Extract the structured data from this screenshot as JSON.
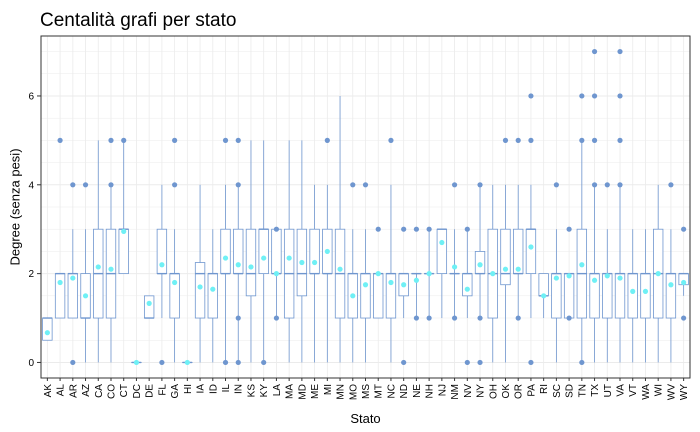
{
  "chart_data": {
    "type": "boxplot",
    "title": "Centalità grafi per stato",
    "xlabel": "Stato",
    "ylabel": "Degree (senza pesi)",
    "ylim": [
      -0.35,
      7.35
    ],
    "y_ticks": [
      0,
      2,
      4,
      6
    ],
    "grid": true,
    "colors": {
      "box": "#6f96cf",
      "outlier": "#6f96cf",
      "mean": "#6ff0f5",
      "grid": "#ebebeb",
      "border": "#333333"
    },
    "categories": [
      "AK",
      "AL",
      "AR",
      "AZ",
      "CA",
      "CO",
      "CT",
      "DC",
      "DE",
      "FL",
      "GA",
      "HI",
      "IA",
      "ID",
      "IL",
      "IN",
      "KS",
      "KY",
      "LA",
      "MA",
      "MD",
      "ME",
      "MI",
      "MN",
      "MO",
      "MS",
      "MT",
      "NC",
      "ND",
      "NE",
      "NH",
      "NJ",
      "NM",
      "NV",
      "NY",
      "OH",
      "OK",
      "OR",
      "PA",
      "RI",
      "SC",
      "SD",
      "TN",
      "TX",
      "UT",
      "VA",
      "VT",
      "WA",
      "WI",
      "WV",
      "WY"
    ],
    "boxes": [
      {
        "state": "AK",
        "min": 0.5,
        "q1": 0.5,
        "median": 1,
        "q3": 1,
        "max": 1,
        "mean": 0.67,
        "outliers": []
      },
      {
        "state": "AL",
        "min": 1,
        "q1": 1,
        "median": 2,
        "q3": 2,
        "max": 2,
        "mean": 1.8,
        "outliers": [
          5
        ]
      },
      {
        "state": "AR",
        "min": 1,
        "q1": 1,
        "median": 2,
        "q3": 2,
        "max": 3,
        "mean": 1.9,
        "outliers": [
          0,
          4
        ]
      },
      {
        "state": "AZ",
        "min": 0,
        "q1": 1,
        "median": 1,
        "q3": 2,
        "max": 3,
        "mean": 1.5,
        "outliers": [
          4
        ]
      },
      {
        "state": "CA",
        "min": 0,
        "q1": 1,
        "median": 2,
        "q3": 3,
        "max": 5,
        "mean": 2.15,
        "outliers": []
      },
      {
        "state": "CO",
        "min": 0,
        "q1": 1,
        "median": 2,
        "q3": 3,
        "max": 4,
        "mean": 2.1,
        "outliers": [
          4,
          5
        ]
      },
      {
        "state": "CT",
        "min": 2,
        "q1": 2,
        "median": 3,
        "q3": 3,
        "max": 5,
        "mean": 2.95,
        "outliers": [
          5
        ]
      },
      {
        "state": "DC",
        "min": 0,
        "q1": 0,
        "median": 0,
        "q3": 0,
        "max": 0,
        "mean": 0,
        "outliers": []
      },
      {
        "state": "DE",
        "min": 1,
        "q1": 1,
        "median": 1,
        "q3": 1.5,
        "max": 1.5,
        "mean": 1.33,
        "outliers": []
      },
      {
        "state": "FL",
        "min": 1,
        "q1": 2,
        "median": 2,
        "q3": 3,
        "max": 4,
        "mean": 2.2,
        "outliers": [
          0
        ]
      },
      {
        "state": "GA",
        "min": 0,
        "q1": 1,
        "median": 2,
        "q3": 2,
        "max": 3,
        "mean": 1.8,
        "outliers": [
          4,
          5
        ]
      },
      {
        "state": "HI",
        "min": 0,
        "q1": 0,
        "median": 0,
        "q3": 0,
        "max": 0,
        "mean": 0,
        "outliers": []
      },
      {
        "state": "IA",
        "min": 0,
        "q1": 1,
        "median": 2,
        "q3": 2.25,
        "max": 4,
        "mean": 1.7,
        "outliers": []
      },
      {
        "state": "ID",
        "min": 0,
        "q1": 1,
        "median": 2,
        "q3": 2,
        "max": 3,
        "mean": 1.65,
        "outliers": []
      },
      {
        "state": "IL",
        "min": 0,
        "q1": 2,
        "median": 2,
        "q3": 3,
        "max": 4,
        "mean": 2.35,
        "outliers": [
          0,
          5
        ]
      },
      {
        "state": "IN",
        "min": 0,
        "q1": 2,
        "median": 2,
        "q3": 3,
        "max": 4,
        "mean": 2.2,
        "outliers": [
          0,
          1,
          4,
          5
        ]
      },
      {
        "state": "KS",
        "min": 0,
        "q1": 1.5,
        "median": 2,
        "q3": 3,
        "max": 5,
        "mean": 2.15,
        "outliers": []
      },
      {
        "state": "KY",
        "min": 0,
        "q1": 2,
        "median": 3,
        "q3": 3,
        "max": 5,
        "mean": 2.35,
        "outliers": [
          0
        ]
      },
      {
        "state": "LA",
        "min": 1,
        "q1": 2,
        "median": 2,
        "q3": 3,
        "max": 3,
        "mean": 2.0,
        "outliers": [
          1,
          3
        ]
      },
      {
        "state": "MA",
        "min": 0,
        "q1": 1,
        "median": 2,
        "q3": 3,
        "max": 5,
        "mean": 2.35,
        "outliers": []
      },
      {
        "state": "MD",
        "min": 0,
        "q1": 1.5,
        "median": 2,
        "q3": 3,
        "max": 5,
        "mean": 2.25,
        "outliers": []
      },
      {
        "state": "ME",
        "min": 0,
        "q1": 2,
        "median": 2,
        "q3": 3,
        "max": 4,
        "mean": 2.25,
        "outliers": []
      },
      {
        "state": "MI",
        "min": 0,
        "q1": 2,
        "median": 2,
        "q3": 3,
        "max": 4,
        "mean": 2.5,
        "outliers": [
          5
        ]
      },
      {
        "state": "MN",
        "min": 0,
        "q1": 1,
        "median": 2,
        "q3": 3,
        "max": 6,
        "mean": 2.1,
        "outliers": []
      },
      {
        "state": "MO",
        "min": 0,
        "q1": 1,
        "median": 2,
        "q3": 2,
        "max": 3,
        "mean": 1.5,
        "outliers": [
          4
        ]
      },
      {
        "state": "MS",
        "min": 0,
        "q1": 1,
        "median": 2,
        "q3": 2,
        "max": 3,
        "mean": 1.75,
        "outliers": [
          4
        ]
      },
      {
        "state": "MT",
        "min": 1,
        "q1": 1,
        "median": 2,
        "q3": 2,
        "max": 2,
        "mean": 2.0,
        "outliers": [
          3
        ]
      },
      {
        "state": "NC",
        "min": 0,
        "q1": 1,
        "median": 2,
        "q3": 2,
        "max": 4,
        "mean": 1.8,
        "outliers": [
          5
        ]
      },
      {
        "state": "ND",
        "min": 1,
        "q1": 1.5,
        "median": 2,
        "q3": 2,
        "max": 2,
        "mean": 1.75,
        "outliers": [
          0,
          3
        ]
      },
      {
        "state": "NE",
        "min": 1,
        "q1": 2,
        "median": 2,
        "q3": 2,
        "max": 2,
        "mean": 1.85,
        "outliers": [
          1,
          3
        ]
      },
      {
        "state": "NH",
        "min": 1,
        "q1": 2,
        "median": 2,
        "q3": 2,
        "max": 3,
        "mean": 2.0,
        "outliers": [
          1,
          3
        ]
      },
      {
        "state": "NJ",
        "min": 1,
        "q1": 2,
        "median": 3,
        "q3": 3,
        "max": 3,
        "mean": 2.7,
        "outliers": []
      },
      {
        "state": "NM",
        "min": 1,
        "q1": 2,
        "median": 2,
        "q3": 2,
        "max": 3,
        "mean": 2.15,
        "outliers": [
          1,
          4
        ]
      },
      {
        "state": "NV",
        "min": 1,
        "q1": 1.5,
        "median": 2,
        "q3": 2,
        "max": 3,
        "mean": 1.65,
        "outliers": [
          0,
          3
        ]
      },
      {
        "state": "NY",
        "min": 1,
        "q1": 2,
        "median": 2,
        "q3": 2.5,
        "max": 4,
        "mean": 2.2,
        "outliers": [
          0,
          1,
          4
        ]
      },
      {
        "state": "OH",
        "min": 0,
        "q1": 1,
        "median": 2,
        "q3": 3,
        "max": 4,
        "mean": 2.0,
        "outliers": []
      },
      {
        "state": "OK",
        "min": 0,
        "q1": 1.75,
        "median": 2,
        "q3": 3,
        "max": 4,
        "mean": 2.1,
        "outliers": [
          5
        ]
      },
      {
        "state": "OR",
        "min": 1,
        "q1": 2,
        "median": 2,
        "q3": 3,
        "max": 4,
        "mean": 2.1,
        "outliers": [
          1,
          5
        ]
      },
      {
        "state": "PA",
        "min": 1,
        "q1": 2,
        "median": 3,
        "q3": 3,
        "max": 4,
        "mean": 2.6,
        "outliers": [
          0,
          5,
          6
        ]
      },
      {
        "state": "RI",
        "min": 1,
        "q1": 1.5,
        "median": 1.5,
        "q3": 2,
        "max": 2,
        "mean": 1.5,
        "outliers": []
      },
      {
        "state": "SC",
        "min": 0,
        "q1": 1,
        "median": 2,
        "q3": 2,
        "max": 3,
        "mean": 1.9,
        "outliers": [
          4
        ]
      },
      {
        "state": "SD",
        "min": 1,
        "q1": 1,
        "median": 2,
        "q3": 2,
        "max": 2,
        "mean": 1.95,
        "outliers": [
          1,
          3
        ]
      },
      {
        "state": "TN",
        "min": 0,
        "q1": 1,
        "median": 2,
        "q3": 3,
        "max": 5,
        "mean": 2.2,
        "outliers": [
          0,
          5,
          6
        ]
      },
      {
        "state": "TX",
        "min": 0,
        "q1": 1,
        "median": 2,
        "q3": 2,
        "max": 4,
        "mean": 1.85,
        "outliers": [
          4,
          5,
          6,
          7
        ]
      },
      {
        "state": "UT",
        "min": 0,
        "q1": 1,
        "median": 2,
        "q3": 2,
        "max": 3,
        "mean": 1.95,
        "outliers": [
          4
        ]
      },
      {
        "state": "VA",
        "min": 0,
        "q1": 1,
        "median": 2,
        "q3": 2,
        "max": 4,
        "mean": 1.9,
        "outliers": [
          4,
          5,
          6,
          7
        ]
      },
      {
        "state": "VT",
        "min": 0,
        "q1": 1,
        "median": 2,
        "q3": 2,
        "max": 3,
        "mean": 1.6,
        "outliers": []
      },
      {
        "state": "WA",
        "min": 0,
        "q1": 1,
        "median": 2,
        "q3": 2,
        "max": 3,
        "mean": 1.6,
        "outliers": []
      },
      {
        "state": "WI",
        "min": 0,
        "q1": 1,
        "median": 2,
        "q3": 3,
        "max": 4,
        "mean": 2.0,
        "outliers": []
      },
      {
        "state": "WV",
        "min": 0,
        "q1": 1,
        "median": 2,
        "q3": 2,
        "max": 3,
        "mean": 1.75,
        "outliers": [
          4
        ]
      },
      {
        "state": "WY",
        "min": 1.5,
        "q1": 1.75,
        "median": 2,
        "q3": 2,
        "max": 2,
        "mean": 1.8,
        "outliers": [
          1,
          3
        ]
      }
    ]
  }
}
